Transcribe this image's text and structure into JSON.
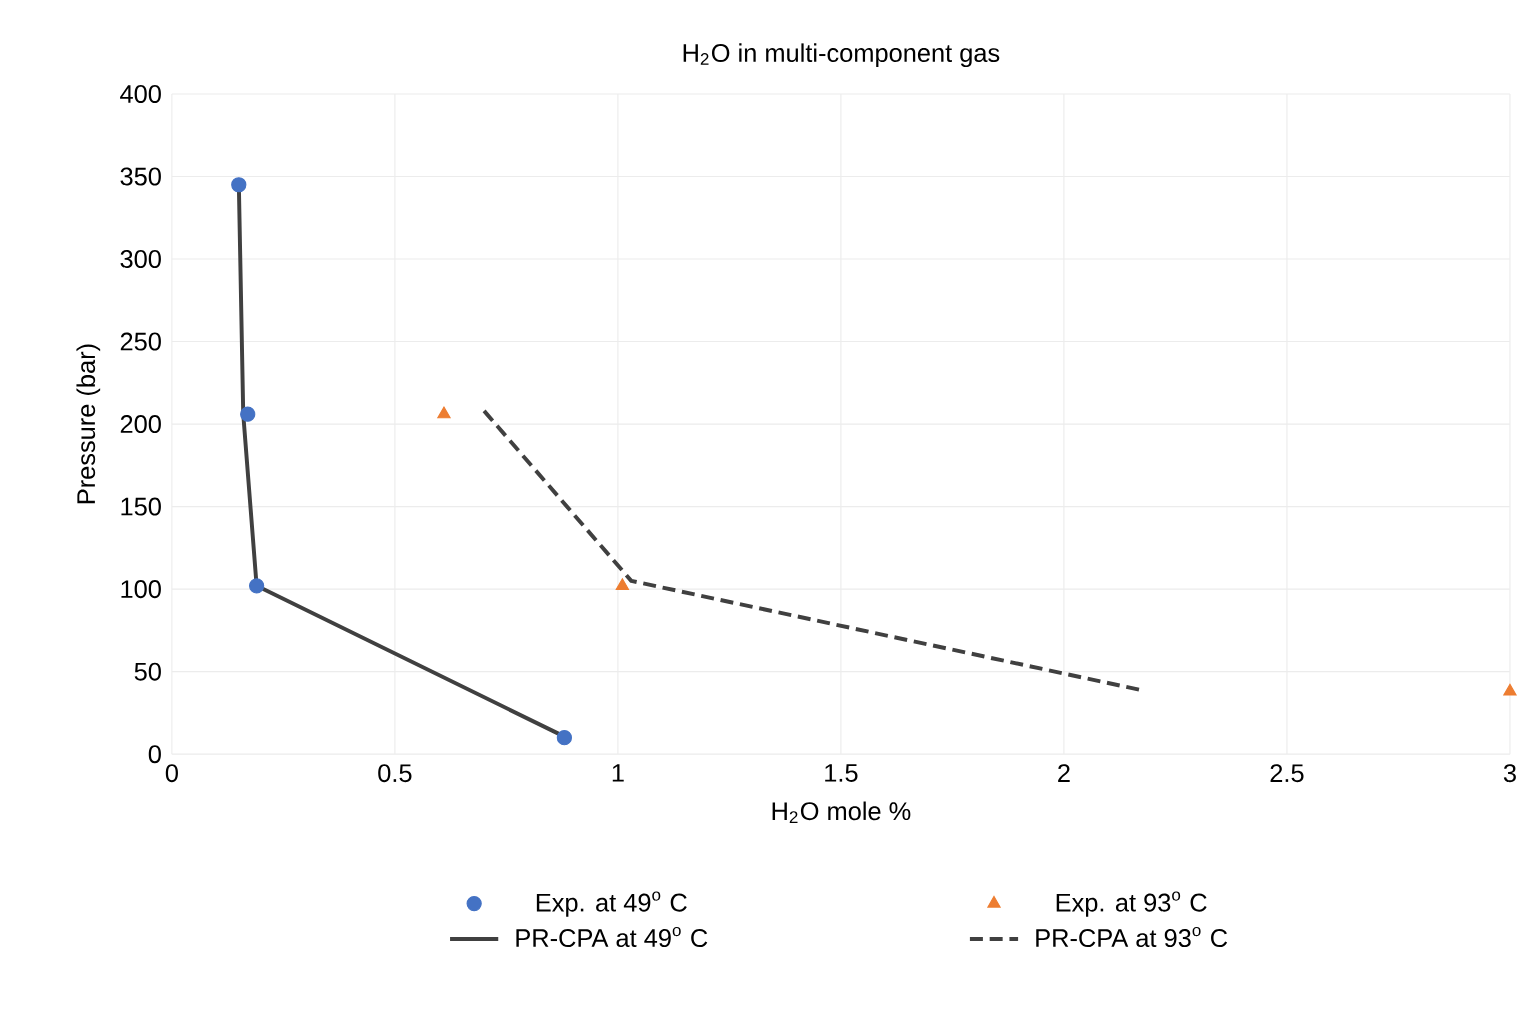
{
  "chart_data": {
    "type": "scatter",
    "title": "H$_{2}$O in multi-component gas",
    "xlabel": "H$_{2}$O mole %",
    "ylabel": "Pressure (bar)",
    "xlim": [
      0,
      3
    ],
    "ylim": [
      0,
      400
    ],
    "xticks": [
      0,
      0.5,
      1,
      1.5,
      2,
      2.5,
      3
    ],
    "yticks": [
      0,
      50,
      100,
      150,
      200,
      250,
      300,
      350,
      400
    ],
    "grid": true,
    "legend": "bottom",
    "series": [
      {
        "name": "Exp. at 49$^{o}$ C",
        "marker": "circle",
        "color": "#4472c4",
        "x": [
          0.15,
          0.17,
          0.19,
          0.88
        ],
        "values": [
          345,
          206,
          102,
          10
        ]
      },
      {
        "name": "Exp. at 93$^{o}$ C",
        "marker": "triangle",
        "color": "#ed7d31",
        "x": [
          0.61,
          1.01,
          3.0
        ],
        "values": [
          206,
          102,
          38
        ]
      },
      {
        "name": "PR-CPA at 49$^{o}$ C",
        "type": "line",
        "line_style": "solid",
        "color": "#404040",
        "x": [
          0.15,
          0.16,
          0.19,
          0.87
        ],
        "values": [
          347,
          206,
          102,
          12
        ]
      },
      {
        "name": "PR-CPA at 93$^{o}$ C",
        "type": "line",
        "line_style": "dashed",
        "color": "#404040",
        "x": [
          0.7,
          1.03,
          2.17
        ],
        "values": [
          208,
          105,
          39
        ]
      }
    ]
  }
}
